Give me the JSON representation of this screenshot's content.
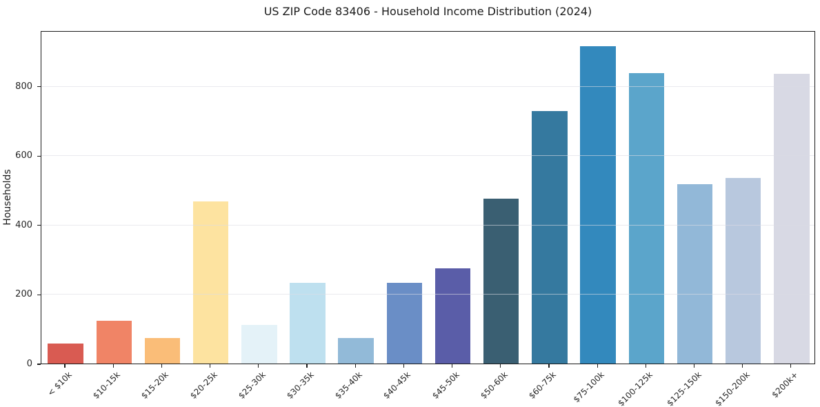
{
  "header": {
    "title": "US ZIP Code 83406 - Household Income Distribution (2024)"
  },
  "chart_data": {
    "type": "bar",
    "title": "US ZIP Code 83406 - Household Income Distribution (2024)",
    "xlabel": "",
    "ylabel": "Households",
    "categories": [
      "< $10k",
      "$10-15k",
      "$15-20k",
      "$20-25k",
      "$25-30k",
      "$30-35k",
      "$35-40k",
      "$40-45k",
      "$45-50k",
      "$50-60k",
      "$60-75k",
      "$75-100k",
      "$100-125k",
      "$125-150k",
      "$150-200k",
      "$200k+"
    ],
    "values": [
      58,
      124,
      73,
      467,
      112,
      232,
      73,
      233,
      274,
      475,
      728,
      915,
      837,
      516,
      535,
      835
    ],
    "bar_colors": [
      "#d95b52",
      "#f08466",
      "#fabd78",
      "#fde3a0",
      "#e4f2f8",
      "#bee0ef",
      "#92bad8",
      "#6a8ec6",
      "#5a5da8",
      "#3a5f72",
      "#35799f",
      "#3389bd",
      "#5ba5cb",
      "#92b8d8",
      "#b8c8de",
      "#d8d9e4"
    ],
    "yticks": [
      0,
      200,
      400,
      600,
      800
    ],
    "ylim": [
      0,
      960
    ],
    "grid": "horizontal-light",
    "legend": "none",
    "x_tick_rotation": 45,
    "background": "#ffffff",
    "spine_color": "#1a1a1a"
  }
}
